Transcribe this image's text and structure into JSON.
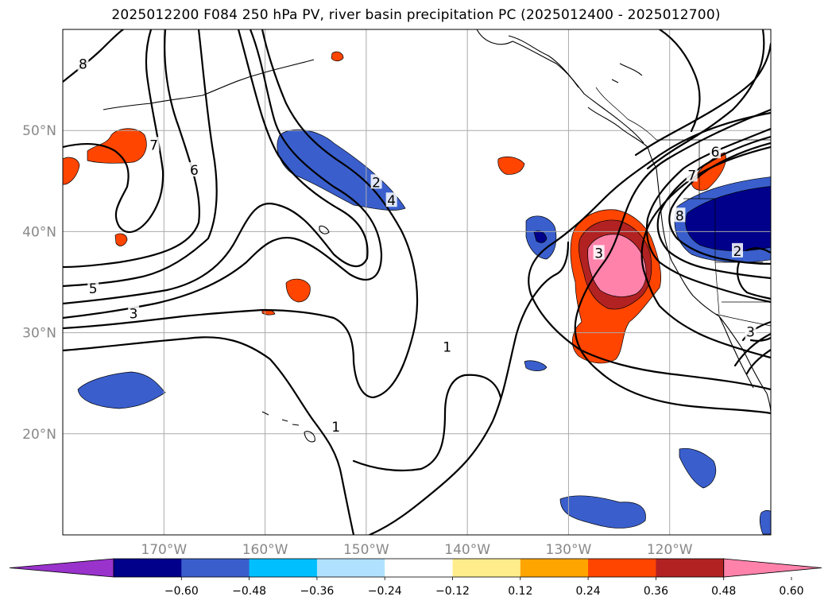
{
  "title": "2025012200 F084 250 hPa PV, river basin precipitation PC (2025012400 - 2025012700)",
  "map": {
    "projection": "plate-carree",
    "lon_range": [
      -180,
      -110
    ],
    "lat_range": [
      10,
      60
    ],
    "lon_ticks": [
      {
        "lon": -170,
        "label": "170°W"
      },
      {
        "lon": -160,
        "label": "160°W"
      },
      {
        "lon": -150,
        "label": "150°W"
      },
      {
        "lon": -140,
        "label": "140°W"
      },
      {
        "lon": -130,
        "label": "130°W"
      },
      {
        "lon": -120,
        "label": "120°W"
      }
    ],
    "lat_ticks": [
      {
        "lat": 50,
        "label": "50°N"
      },
      {
        "lat": 40,
        "label": "40°N"
      },
      {
        "lat": 30,
        "label": "30°N"
      },
      {
        "lat": 20,
        "label": "20°N"
      }
    ],
    "grid": true,
    "pv_contour_labels": [
      {
        "text": "8",
        "lon": -178,
        "lat": 56.5
      },
      {
        "text": "7",
        "lon": -171,
        "lat": 48.5
      },
      {
        "text": "6",
        "lon": -167,
        "lat": 46
      },
      {
        "text": "2",
        "lon": -149,
        "lat": 44.8
      },
      {
        "text": "4",
        "lon": -147.5,
        "lat": 43
      },
      {
        "text": "5",
        "lon": -177,
        "lat": 34.3
      },
      {
        "text": "3",
        "lon": -173,
        "lat": 31.8
      },
      {
        "text": "1",
        "lon": -142,
        "lat": 28.5
      },
      {
        "text": "1",
        "lon": -153,
        "lat": 20.6
      },
      {
        "text": "3",
        "lon": -127,
        "lat": 37.8
      },
      {
        "text": "6",
        "lon": -115.5,
        "lat": 47.8
      },
      {
        "text": "7",
        "lon": -117.8,
        "lat": 45.5
      },
      {
        "text": "8",
        "lon": -119,
        "lat": 41.5
      },
      {
        "text": "2",
        "lon": -113.3,
        "lat": 38
      },
      {
        "text": "3",
        "lon": -112,
        "lat": 30
      }
    ]
  },
  "colorbar": {
    "colors": [
      "#9933cc",
      "#00008b",
      "#3a5fcd",
      "#00bfff",
      "#b0e2ff",
      "#ffffff",
      "#ffec8b",
      "#ffa500",
      "#ff4500",
      "#b22222",
      "#ff82ab"
    ],
    "tick_labels": [
      "−0.60",
      "−0.48",
      "−0.36",
      "−0.24",
      "−0.12",
      "0.12",
      "0.24",
      "0.36",
      "0.48",
      "0.60"
    ]
  }
}
